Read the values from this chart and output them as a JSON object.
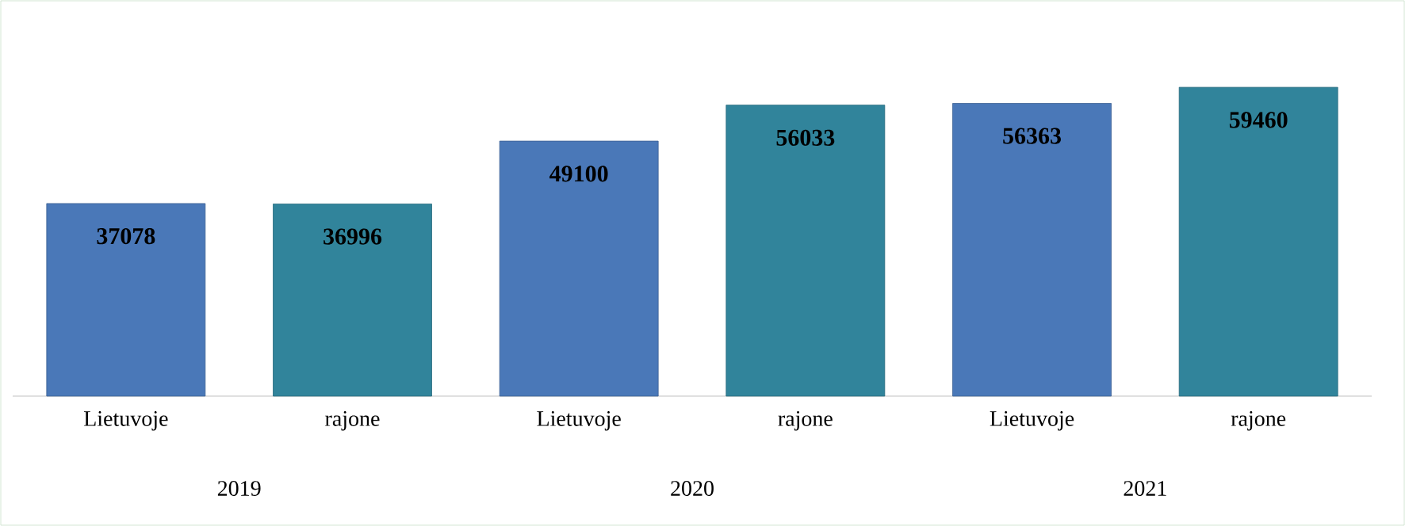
{
  "chart_data": {
    "type": "bar",
    "categories": [
      "Lietuvoje",
      "rajone",
      "Lietuvoje",
      "rajone",
      "Lietuvoje",
      "rajone"
    ],
    "values": [
      37078,
      36996,
      49100,
      56033,
      56363,
      59460
    ],
    "colors": [
      "#4a78b8",
      "#31849b",
      "#4a78b8",
      "#31849b",
      "#4a78b8",
      "#31849b"
    ],
    "annotations": [
      "2019",
      "2020",
      "2021"
    ],
    "data_labels": true
  }
}
